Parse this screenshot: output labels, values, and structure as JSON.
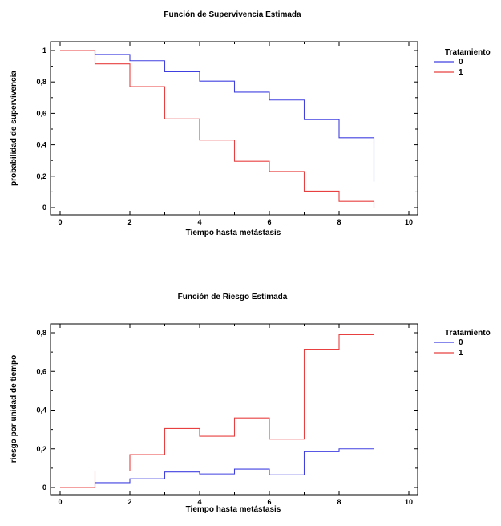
{
  "chart_data": [
    {
      "type": "line",
      "step": true,
      "title": "Función de Supervivencia Estimada",
      "xlabel": "Tiempo hasta metástasis",
      "ylabel": "probabilidad de supervivencia",
      "xlim": [
        0,
        10
      ],
      "ylim": [
        0,
        1
      ],
      "xticks": [
        0,
        2,
        4,
        6,
        8,
        10
      ],
      "xtick_labels": [
        "0",
        "2",
        "4",
        "6",
        "8",
        "10"
      ],
      "yticks": [
        0,
        0.2,
        0.4,
        0.6,
        0.8,
        1
      ],
      "ytick_labels": [
        "0",
        "0,2",
        "0,4",
        "0,6",
        "0,8",
        "1"
      ],
      "grid": false,
      "legend": {
        "title": "Tratamiento",
        "placement": "right"
      },
      "series": [
        {
          "name": "0",
          "color": "#4040e0",
          "x": [
            0,
            1,
            2,
            3,
            4,
            5,
            6,
            7,
            8,
            9
          ],
          "values": [
            1.0,
            0.975,
            0.935,
            0.865,
            0.805,
            0.735,
            0.685,
            0.56,
            0.445,
            0.165
          ]
        },
        {
          "name": "1",
          "color": "#e84040",
          "x": [
            0,
            1,
            2,
            3,
            4,
            5,
            6,
            7,
            8,
            9
          ],
          "values": [
            1.0,
            0.915,
            0.77,
            0.565,
            0.43,
            0.295,
            0.23,
            0.105,
            0.04,
            0.0
          ]
        }
      ]
    },
    {
      "type": "line",
      "step": true,
      "title": "Función de Riesgo Estimada",
      "xlabel": "Tiempo hasta metástasis",
      "ylabel": "riesgo por unidad de tiempo",
      "xlim": [
        0,
        10
      ],
      "ylim": [
        0,
        0.8
      ],
      "xticks": [
        0,
        2,
        4,
        6,
        8,
        10
      ],
      "xtick_labels": [
        "0",
        "2",
        "4",
        "6",
        "8",
        "10"
      ],
      "yticks": [
        0,
        0.2,
        0.4,
        0.6,
        0.8
      ],
      "ytick_labels": [
        "0",
        "0,2",
        "0,4",
        "0,6",
        "0,8"
      ],
      "grid": false,
      "legend": {
        "title": "Tratamiento",
        "placement": "right"
      },
      "series": [
        {
          "name": "0",
          "color": "#4040e0",
          "x": [
            0,
            1,
            2,
            3,
            4,
            5,
            6,
            7,
            8,
            9
          ],
          "values": [
            0.0,
            0.025,
            0.045,
            0.08,
            0.07,
            0.095,
            0.065,
            0.185,
            0.2,
            0.2
          ]
        },
        {
          "name": "1",
          "color": "#e84040",
          "x": [
            0,
            1,
            2,
            3,
            4,
            5,
            6,
            7,
            8,
            9
          ],
          "values": [
            0.0,
            0.085,
            0.17,
            0.305,
            0.265,
            0.36,
            0.25,
            0.715,
            0.79,
            0.79
          ]
        }
      ]
    }
  ]
}
